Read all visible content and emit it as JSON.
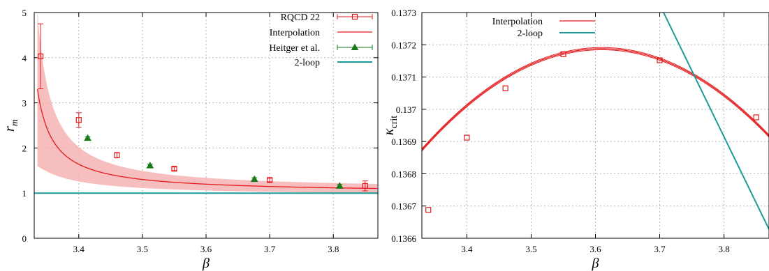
{
  "chart_data": [
    {
      "type": "scatter",
      "panel": "left",
      "xlabel": "β",
      "ylabel": "r_m",
      "xlim": [
        3.33,
        3.87
      ],
      "ylim": [
        0,
        5
      ],
      "xticks": [
        "3.4",
        "3.5",
        "3.6",
        "3.7",
        "3.8"
      ],
      "yticks": [
        "0",
        "1",
        "2",
        "3",
        "4",
        "5"
      ],
      "grid": true,
      "legend_position": "top-right",
      "series": [
        {
          "name": "RQCD 22",
          "marker": "open-square",
          "color": "#e41a1c",
          "x": [
            3.34,
            3.4,
            3.46,
            3.55,
            3.7,
            3.85
          ],
          "y": [
            4.03,
            2.62,
            1.84,
            1.54,
            1.29,
            1.16
          ],
          "err": [
            0.72,
            0.16,
            0.06,
            0.04,
            0.04,
            0.11
          ]
        },
        {
          "name": "Interpolation",
          "type": "line",
          "color": "#e41a1c",
          "band": true
        },
        {
          "name": "Heitger et al.",
          "marker": "filled-triangle",
          "color": "#1a7a1a",
          "x": [
            3.414,
            3.512,
            3.676,
            3.81
          ],
          "y": [
            2.22,
            1.61,
            1.31,
            1.16
          ],
          "err": [
            0.03,
            0.03,
            0.03,
            0.03
          ]
        },
        {
          "name": "2-loop",
          "type": "line",
          "color": "#1a9a9a",
          "y_const": 1.0
        }
      ]
    },
    {
      "type": "scatter",
      "panel": "right",
      "xlabel": "β",
      "ylabel": "κ_crit",
      "xlim": [
        3.33,
        3.87
      ],
      "ylim": [
        0.1366,
        0.1373
      ],
      "xticks": [
        "3.4",
        "3.5",
        "3.6",
        "3.7",
        "3.8"
      ],
      "yticks": [
        "0.1366",
        "0.1367",
        "0.1368",
        "0.1369",
        "0.137",
        "0.1371",
        "0.1372",
        "0.1373"
      ],
      "grid": true,
      "legend_position": "top-left",
      "series": [
        {
          "name": "Interpolation",
          "type": "line",
          "color": "#e41a1c",
          "band": true
        },
        {
          "name": "2-loop",
          "type": "line",
          "color": "#1a9a9a",
          "x": [
            3.706,
            3.87
          ],
          "y": [
            0.1373,
            0.136628
          ]
        },
        {
          "name": "",
          "marker": "open-square",
          "color": "#e41a1c",
          "x": [
            3.34,
            3.4,
            3.46,
            3.55,
            3.7,
            3.85
          ],
          "y": [
            0.136688,
            0.136912,
            0.137065,
            0.137171,
            0.137152,
            0.136975
          ]
        }
      ]
    }
  ]
}
